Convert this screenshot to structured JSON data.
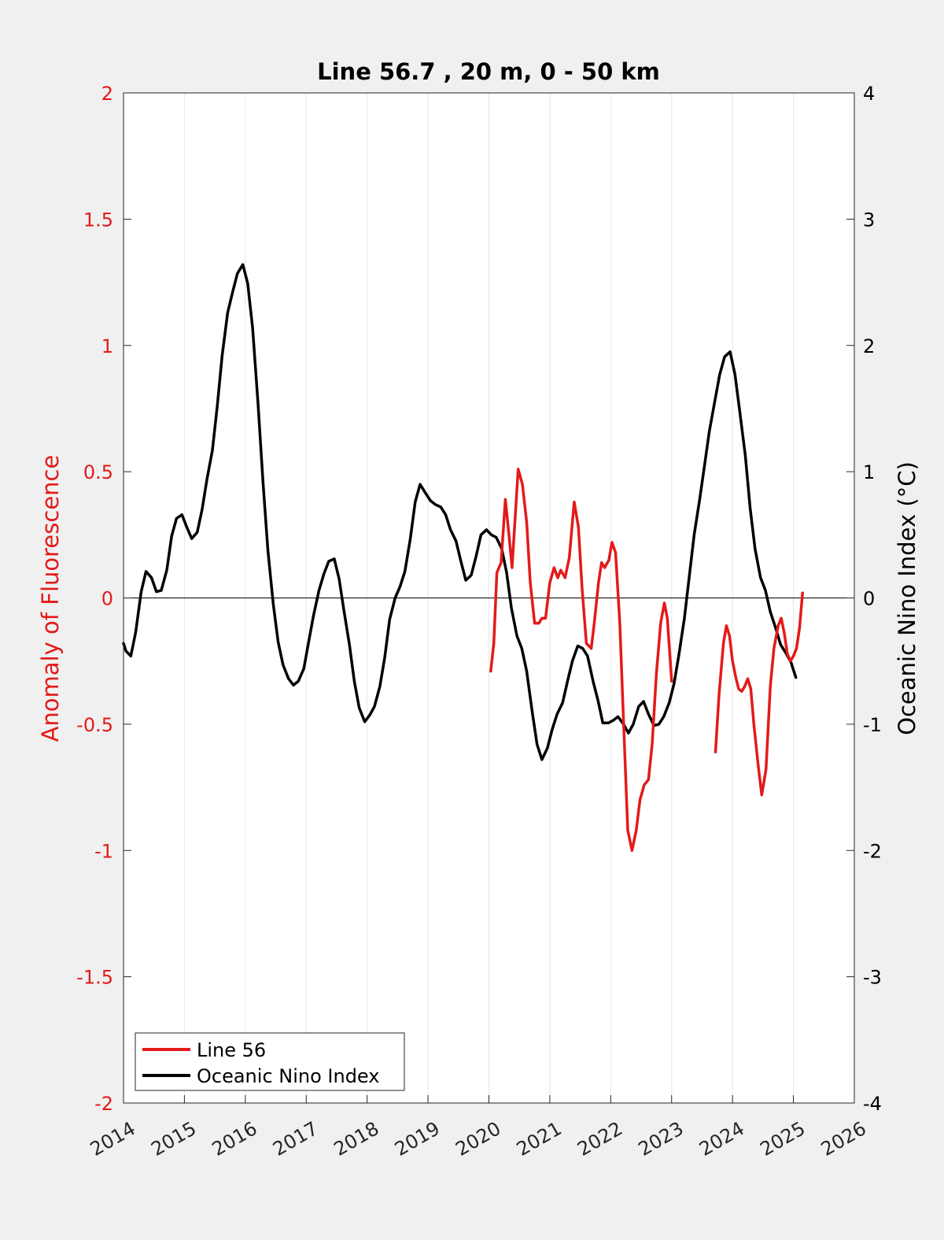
{
  "chart_data": {
    "type": "line",
    "title": "Line 56.7 , 20 m, 0 - 50 km",
    "xlabel": "",
    "ylabel_left": "Anomaly of Fluorescence",
    "ylabel_right": "Oceanic Nino Index (°C)",
    "xlim": [
      2014,
      2026
    ],
    "ylim_left": [
      -2,
      2
    ],
    "ylim_right": [
      -4,
      4
    ],
    "x_ticks": [
      "2014",
      "2015",
      "2016",
      "2017",
      "2018",
      "2019",
      "2020",
      "2021",
      "2022",
      "2023",
      "2024",
      "2025",
      "2026"
    ],
    "x_tick_values": [
      2014,
      2015,
      2016,
      2017,
      2018,
      2019,
      2020,
      2021,
      2022,
      2023,
      2024,
      2025,
      2026
    ],
    "y_left_ticks": [
      "-2",
      "-1.5",
      "-1",
      "-0.5",
      "0",
      "0.5",
      "1",
      "1.5",
      "2"
    ],
    "y_left_tick_values": [
      -2,
      -1.5,
      -1,
      -0.5,
      0,
      0.5,
      1,
      1.5,
      2
    ],
    "y_right_ticks": [
      "-4",
      "-3",
      "-2",
      "-1",
      "0",
      "1",
      "2",
      "3",
      "4"
    ],
    "y_right_tick_values": [
      -4,
      -3,
      -2,
      -1,
      0,
      1,
      2,
      3,
      4
    ],
    "grid": "vertical",
    "legend_position": "bottom-left",
    "colors": {
      "line56": "#e31a1a",
      "oni": "#000000",
      "left_axis": "#e31a1a",
      "right_axis": "#000000"
    },
    "series": [
      {
        "name": "Line 56",
        "axis": "left",
        "segments": [
          [
            [
              2020.03,
              -0.29
            ],
            [
              2020.08,
              -0.18
            ],
            [
              2020.13,
              0.1
            ],
            [
              2020.2,
              0.14
            ],
            [
              2020.27,
              0.39
            ],
            [
              2020.33,
              0.25
            ],
            [
              2020.38,
              0.12
            ],
            [
              2020.48,
              0.51
            ],
            [
              2020.55,
              0.45
            ],
            [
              2020.62,
              0.3
            ],
            [
              2020.68,
              0.06
            ],
            [
              2020.75,
              -0.1
            ],
            [
              2020.82,
              -0.1
            ],
            [
              2020.87,
              -0.08
            ],
            [
              2020.93,
              -0.08
            ],
            [
              2021.0,
              0.06
            ],
            [
              2021.07,
              0.12
            ],
            [
              2021.13,
              0.08
            ],
            [
              2021.18,
              0.11
            ],
            [
              2021.25,
              0.08
            ],
            [
              2021.32,
              0.16
            ],
            [
              2021.4,
              0.38
            ],
            [
              2021.47,
              0.28
            ],
            [
              2021.53,
              0.04
            ],
            [
              2021.6,
              -0.18
            ],
            [
              2021.68,
              -0.2
            ],
            [
              2021.73,
              -0.1
            ],
            [
              2021.8,
              0.06
            ],
            [
              2021.85,
              0.14
            ],
            [
              2021.9,
              0.12
            ],
            [
              2021.97,
              0.15
            ],
            [
              2022.02,
              0.22
            ],
            [
              2022.08,
              0.18
            ],
            [
              2022.15,
              -0.1
            ],
            [
              2022.22,
              -0.55
            ],
            [
              2022.28,
              -0.92
            ],
            [
              2022.35,
              -1.0
            ],
            [
              2022.42,
              -0.92
            ],
            [
              2022.48,
              -0.8
            ],
            [
              2022.55,
              -0.74
            ],
            [
              2022.62,
              -0.72
            ],
            [
              2022.68,
              -0.58
            ],
            [
              2022.75,
              -0.3
            ],
            [
              2022.82,
              -0.1
            ],
            [
              2022.88,
              -0.02
            ],
            [
              2022.93,
              -0.08
            ],
            [
              2023.0,
              -0.33
            ]
          ],
          [
            [
              2023.72,
              -0.61
            ],
            [
              2023.78,
              -0.38
            ],
            [
              2023.85,
              -0.18
            ],
            [
              2023.9,
              -0.11
            ],
            [
              2023.95,
              -0.15
            ],
            [
              2024.0,
              -0.25
            ],
            [
              2024.05,
              -0.31
            ],
            [
              2024.1,
              -0.36
            ],
            [
              2024.15,
              -0.37
            ],
            [
              2024.2,
              -0.35
            ],
            [
              2024.25,
              -0.32
            ],
            [
              2024.3,
              -0.36
            ],
            [
              2024.35,
              -0.5
            ],
            [
              2024.42,
              -0.66
            ],
            [
              2024.48,
              -0.78
            ],
            [
              2024.55,
              -0.68
            ],
            [
              2024.62,
              -0.35
            ],
            [
              2024.68,
              -0.2
            ],
            [
              2024.75,
              -0.11
            ],
            [
              2024.8,
              -0.08
            ],
            [
              2024.85,
              -0.14
            ],
            [
              2024.9,
              -0.22
            ],
            [
              2024.95,
              -0.25
            ],
            [
              2025.0,
              -0.23
            ],
            [
              2025.05,
              -0.2
            ],
            [
              2025.1,
              -0.12
            ],
            [
              2025.15,
              0.02
            ]
          ]
        ]
      },
      {
        "name": "Oceanic Nino Index",
        "axis": "right",
        "segments": [
          [
            [
              2014.0,
              -0.36
            ],
            [
              2014.04,
              -0.42
            ],
            [
              2014.12,
              -0.46
            ],
            [
              2014.2,
              -0.27
            ],
            [
              2014.29,
              0.05
            ],
            [
              2014.37,
              0.21
            ],
            [
              2014.46,
              0.16
            ],
            [
              2014.54,
              0.05
            ],
            [
              2014.62,
              0.06
            ],
            [
              2014.71,
              0.22
            ],
            [
              2014.79,
              0.49
            ],
            [
              2014.87,
              0.63
            ],
            [
              2014.96,
              0.66
            ],
            [
              2015.04,
              0.56
            ],
            [
              2015.12,
              0.47
            ],
            [
              2015.21,
              0.52
            ],
            [
              2015.29,
              0.7
            ],
            [
              2015.37,
              0.94
            ],
            [
              2015.46,
              1.17
            ],
            [
              2015.54,
              1.52
            ],
            [
              2015.62,
              1.92
            ],
            [
              2015.71,
              2.26
            ],
            [
              2015.79,
              2.42
            ],
            [
              2015.87,
              2.57
            ],
            [
              2015.96,
              2.64
            ],
            [
              2016.04,
              2.49
            ],
            [
              2016.12,
              2.14
            ],
            [
              2016.21,
              1.53
            ],
            [
              2016.29,
              0.92
            ],
            [
              2016.37,
              0.38
            ],
            [
              2016.46,
              -0.05
            ],
            [
              2016.54,
              -0.35
            ],
            [
              2016.62,
              -0.53
            ],
            [
              2016.71,
              -0.64
            ],
            [
              2016.79,
              -0.69
            ],
            [
              2016.87,
              -0.66
            ],
            [
              2016.96,
              -0.56
            ],
            [
              2017.04,
              -0.35
            ],
            [
              2017.12,
              -0.14
            ],
            [
              2017.21,
              0.06
            ],
            [
              2017.29,
              0.19
            ],
            [
              2017.37,
              0.29
            ],
            [
              2017.46,
              0.31
            ],
            [
              2017.54,
              0.15
            ],
            [
              2017.62,
              -0.1
            ],
            [
              2017.71,
              -0.37
            ],
            [
              2017.79,
              -0.66
            ],
            [
              2017.87,
              -0.87
            ],
            [
              2017.96,
              -0.98
            ],
            [
              2018.04,
              -0.93
            ],
            [
              2018.12,
              -0.86
            ],
            [
              2018.21,
              -0.7
            ],
            [
              2018.29,
              -0.47
            ],
            [
              2018.37,
              -0.17
            ],
            [
              2018.46,
              0.0
            ],
            [
              2018.54,
              0.09
            ],
            [
              2018.62,
              0.21
            ],
            [
              2018.71,
              0.47
            ],
            [
              2018.79,
              0.76
            ],
            [
              2018.87,
              0.9
            ],
            [
              2018.96,
              0.83
            ],
            [
              2019.04,
              0.77
            ],
            [
              2019.12,
              0.74
            ],
            [
              2019.21,
              0.72
            ],
            [
              2019.29,
              0.66
            ],
            [
              2019.37,
              0.54
            ],
            [
              2019.46,
              0.45
            ],
            [
              2019.54,
              0.29
            ],
            [
              2019.62,
              0.14
            ],
            [
              2019.71,
              0.18
            ],
            [
              2019.79,
              0.33
            ],
            [
              2019.87,
              0.5
            ],
            [
              2019.96,
              0.54
            ],
            [
              2020.04,
              0.5
            ],
            [
              2020.12,
              0.48
            ],
            [
              2020.21,
              0.39
            ],
            [
              2020.29,
              0.2
            ],
            [
              2020.37,
              -0.08
            ],
            [
              2020.46,
              -0.3
            ],
            [
              2020.54,
              -0.4
            ],
            [
              2020.62,
              -0.58
            ],
            [
              2020.71,
              -0.9
            ],
            [
              2020.79,
              -1.16
            ],
            [
              2020.87,
              -1.28
            ],
            [
              2020.96,
              -1.19
            ],
            [
              2021.04,
              -1.04
            ],
            [
              2021.12,
              -0.92
            ],
            [
              2021.21,
              -0.83
            ],
            [
              2021.29,
              -0.66
            ],
            [
              2021.37,
              -0.5
            ],
            [
              2021.46,
              -0.38
            ],
            [
              2021.54,
              -0.4
            ],
            [
              2021.62,
              -0.46
            ],
            [
              2021.71,
              -0.66
            ],
            [
              2021.79,
              -0.81
            ],
            [
              2021.87,
              -0.99
            ],
            [
              2021.96,
              -0.99
            ],
            [
              2022.04,
              -0.97
            ],
            [
              2022.12,
              -0.94
            ],
            [
              2022.21,
              -1.0
            ],
            [
              2022.29,
              -1.07
            ],
            [
              2022.37,
              -1.0
            ],
            [
              2022.46,
              -0.86
            ],
            [
              2022.54,
              -0.82
            ],
            [
              2022.62,
              -0.92
            ],
            [
              2022.71,
              -1.01
            ],
            [
              2022.79,
              -1.0
            ],
            [
              2022.87,
              -0.94
            ],
            [
              2022.96,
              -0.83
            ],
            [
              2023.04,
              -0.68
            ],
            [
              2023.12,
              -0.45
            ],
            [
              2023.21,
              -0.16
            ],
            [
              2023.29,
              0.17
            ],
            [
              2023.37,
              0.5
            ],
            [
              2023.46,
              0.78
            ],
            [
              2023.54,
              1.05
            ],
            [
              2023.62,
              1.32
            ],
            [
              2023.71,
              1.56
            ],
            [
              2023.79,
              1.77
            ],
            [
              2023.87,
              1.91
            ],
            [
              2023.96,
              1.95
            ],
            [
              2024.04,
              1.77
            ],
            [
              2024.12,
              1.47
            ],
            [
              2024.21,
              1.13
            ],
            [
              2024.29,
              0.71
            ],
            [
              2024.37,
              0.39
            ],
            [
              2024.46,
              0.16
            ],
            [
              2024.54,
              0.06
            ],
            [
              2024.62,
              -0.11
            ],
            [
              2024.71,
              -0.24
            ],
            [
              2024.79,
              -0.37
            ],
            [
              2024.87,
              -0.43
            ],
            [
              2024.96,
              -0.51
            ],
            [
              2025.04,
              -0.63
            ]
          ]
        ]
      }
    ]
  }
}
